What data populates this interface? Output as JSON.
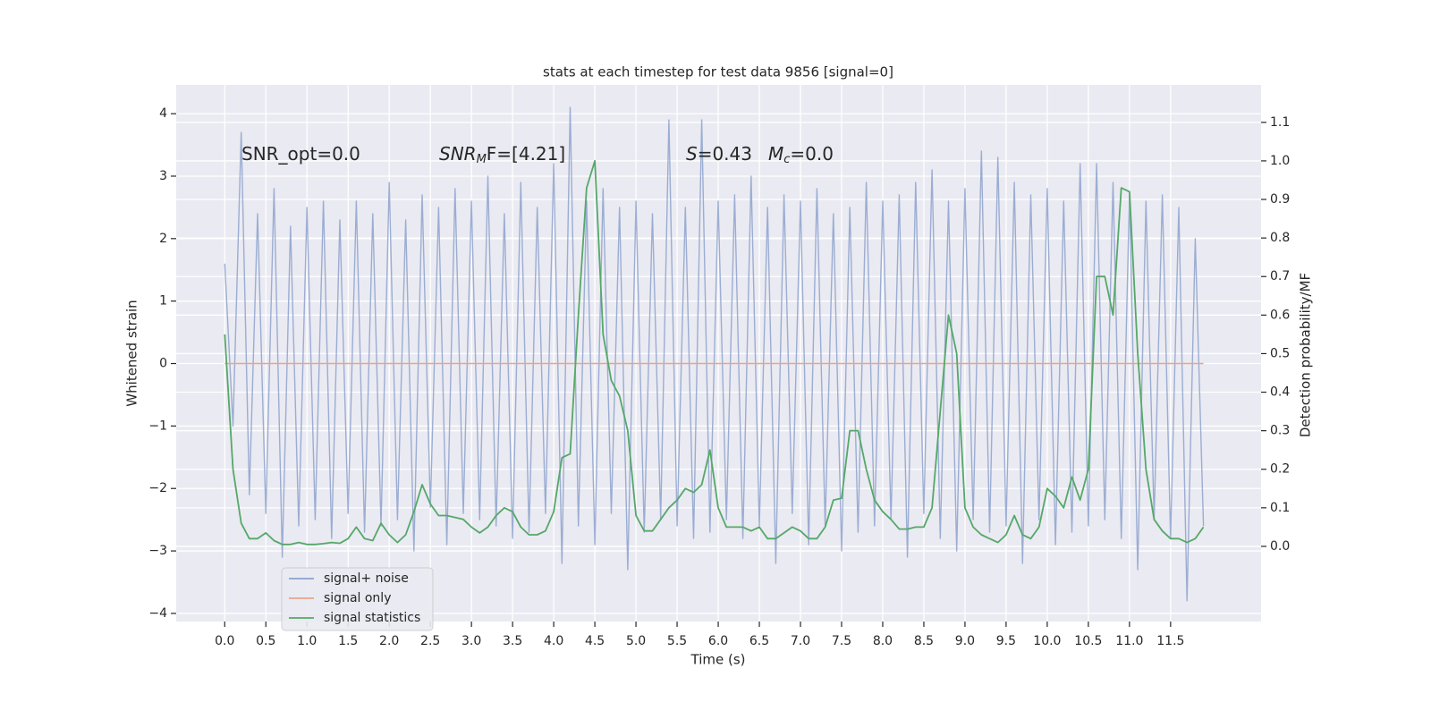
{
  "chart_data": {
    "type": "line",
    "title": "stats at each timestep for test data 9856 [signal=0]",
    "xlabel": "Time (s)",
    "ylabel": "Whitened strain",
    "y2label": "Detection probability/MF",
    "annotations": [
      [
        "SNR_opt=0.0"
      ],
      [
        "SNR",
        "M",
        "F=[4.21]"
      ],
      [
        "S",
        "=0.43"
      ],
      [
        "M",
        "c",
        "=0.0"
      ]
    ],
    "x": [
      0,
      0.1,
      0.2,
      0.3,
      0.4,
      0.5,
      0.6,
      0.7,
      0.8,
      0.9,
      1,
      1.1,
      1.2,
      1.3,
      1.4,
      1.5,
      1.6,
      1.7,
      1.8,
      1.9,
      2,
      2.1,
      2.2,
      2.3,
      2.4,
      2.5,
      2.6,
      2.7,
      2.8,
      2.9,
      3,
      3.1,
      3.2,
      3.3,
      3.4,
      3.5,
      3.6,
      3.7,
      3.8,
      3.9,
      4,
      4.1,
      4.2,
      4.3,
      4.4,
      4.5,
      4.6,
      4.7,
      4.8,
      4.9,
      5,
      5.1,
      5.2,
      5.3,
      5.4,
      5.5,
      5.6,
      5.7,
      5.8,
      5.9,
      6,
      6.1,
      6.2,
      6.3,
      6.4,
      6.5,
      6.6,
      6.7,
      6.8,
      6.9,
      7,
      7.1,
      7.2,
      7.3,
      7.4,
      7.5,
      7.6,
      7.7,
      7.8,
      7.9,
      8,
      8.1,
      8.2,
      8.3,
      8.4,
      8.5,
      8.6,
      8.7,
      8.8,
      8.9,
      9,
      9.1,
      9.2,
      9.3,
      9.4,
      9.5,
      9.6,
      9.7,
      9.8,
      9.9,
      10,
      10.1,
      10.2,
      10.3,
      10.4,
      10.5,
      10.6,
      10.7,
      10.8,
      10.9,
      11,
      11.1,
      11.2,
      11.3,
      11.4,
      11.5,
      11.6,
      11.7,
      11.8,
      11.9
    ],
    "series": [
      {
        "name": "signal+ noise",
        "color": "#8da2cc",
        "values": [
          1.6,
          -1.0,
          3.7,
          -2.1,
          2.4,
          -2.4,
          2.8,
          -3.1,
          2.2,
          -2.6,
          2.5,
          -2.5,
          2.6,
          -2.8,
          2.3,
          -2.4,
          2.6,
          -2.7,
          2.4,
          -2.6,
          2.9,
          -2.5,
          2.3,
          -3.0,
          2.7,
          -2.3,
          2.5,
          -2.9,
          2.8,
          -2.4,
          2.6,
          -2.5,
          3.0,
          -2.6,
          2.4,
          -2.8,
          2.9,
          -2.7,
          2.5,
          -2.4,
          3.2,
          -3.2,
          4.1,
          -2.6,
          2.6,
          -2.9,
          2.8,
          -2.4,
          2.5,
          -3.3,
          2.6,
          -2.7,
          2.4,
          -2.5,
          3.9,
          -2.6,
          2.5,
          -2.8,
          3.9,
          -2.7,
          2.6,
          -2.5,
          2.7,
          -2.8,
          3.0,
          -2.6,
          2.5,
          -3.2,
          2.7,
          -2.4,
          2.6,
          -2.9,
          2.8,
          -2.6,
          2.4,
          -3.0,
          2.5,
          -2.7,
          2.9,
          -2.6,
          2.6,
          -2.5,
          2.7,
          -3.1,
          2.9,
          -2.4,
          3.1,
          -2.8,
          2.6,
          -3.0,
          2.8,
          -2.5,
          3.4,
          -2.7,
          3.3,
          -2.6,
          2.9,
          -3.2,
          2.7,
          -2.5,
          2.8,
          -2.9,
          2.6,
          -2.7,
          3.2,
          -2.6,
          3.2,
          -2.5,
          2.9,
          -2.8,
          2.7,
          -3.3,
          2.6,
          -2.5,
          2.7,
          -2.8,
          2.5,
          -3.8,
          2.0,
          -2.6
        ]
      },
      {
        "name": "signal only",
        "color": "#e8a48a",
        "values": [
          0,
          0,
          0,
          0,
          0,
          0,
          0,
          0,
          0,
          0,
          0,
          0,
          0,
          0,
          0,
          0,
          0,
          0,
          0,
          0,
          0,
          0,
          0,
          0,
          0,
          0,
          0,
          0,
          0,
          0,
          0,
          0,
          0,
          0,
          0,
          0,
          0,
          0,
          0,
          0,
          0,
          0,
          0,
          0,
          0,
          0,
          0,
          0,
          0,
          0,
          0,
          0,
          0,
          0,
          0,
          0,
          0,
          0,
          0,
          0,
          0,
          0,
          0,
          0,
          0,
          0,
          0,
          0,
          0,
          0,
          0,
          0,
          0,
          0,
          0,
          0,
          0,
          0,
          0,
          0,
          0,
          0,
          0,
          0,
          0,
          0,
          0,
          0,
          0,
          0,
          0,
          0,
          0,
          0,
          0,
          0,
          0,
          0,
          0,
          0,
          0,
          0,
          0,
          0,
          0,
          0,
          0,
          0,
          0,
          0,
          0,
          0,
          0,
          0,
          0,
          0,
          0,
          0,
          0,
          0
        ]
      },
      {
        "name": "signal statistics",
        "color": "#55a868",
        "axis": "y2",
        "values": [
          0.55,
          0.2,
          0.06,
          0.02,
          0.02,
          0.035,
          0.015,
          0.005,
          0.005,
          0.01,
          0.005,
          0.005,
          0.007,
          0.01,
          0.008,
          0.02,
          0.05,
          0.02,
          0.015,
          0.06,
          0.03,
          0.01,
          0.03,
          0.09,
          0.16,
          0.11,
          0.08,
          0.08,
          0.075,
          0.07,
          0.05,
          0.035,
          0.05,
          0.08,
          0.1,
          0.09,
          0.05,
          0.03,
          0.03,
          0.04,
          0.09,
          0.23,
          0.24,
          0.6,
          0.93,
          1.0,
          0.55,
          0.43,
          0.39,
          0.3,
          0.08,
          0.04,
          0.04,
          0.07,
          0.1,
          0.12,
          0.15,
          0.14,
          0.16,
          0.25,
          0.1,
          0.05,
          0.05,
          0.05,
          0.04,
          0.05,
          0.02,
          0.02,
          0.035,
          0.05,
          0.04,
          0.02,
          0.02,
          0.05,
          0.12,
          0.125,
          0.3,
          0.3,
          0.2,
          0.12,
          0.09,
          0.07,
          0.045,
          0.045,
          0.05,
          0.05,
          0.1,
          0.35,
          0.6,
          0.5,
          0.1,
          0.05,
          0.03,
          0.02,
          0.01,
          0.03,
          0.08,
          0.03,
          0.02,
          0.05,
          0.15,
          0.13,
          0.1,
          0.18,
          0.12,
          0.2,
          0.7,
          0.7,
          0.6,
          0.93,
          0.92,
          0.5,
          0.2,
          0.07,
          0.04,
          0.02,
          0.02,
          0.01,
          0.02,
          0.05
        ]
      }
    ],
    "xlim": [
      -0.59,
      12.6
    ],
    "xticks": [
      {
        "value": 0,
        "label": "0.0"
      },
      0.5,
      {
        "value": 1,
        "label": "1.0"
      },
      1.5,
      {
        "value": 2,
        "label": "2.0"
      },
      2.5,
      {
        "value": 3,
        "label": "3.0"
      },
      3.5,
      {
        "value": 4,
        "label": "4.0"
      },
      4.5,
      {
        "value": 5,
        "label": "5.0"
      },
      5.5,
      {
        "value": 6,
        "label": "6.0"
      },
      6.5,
      {
        "value": 7,
        "label": "7.0"
      },
      7.5,
      {
        "value": 8,
        "label": "8.0"
      },
      8.5,
      {
        "value": 9,
        "label": "9.0"
      },
      9.5,
      {
        "value": 10,
        "label": "10.0"
      },
      10.5,
      {
        "value": 11,
        "label": "11.0"
      },
      11.5
    ],
    "ylim": [
      -4.13,
      4.46
    ],
    "yticks": [
      {
        "value": -4,
        "label": "−4"
      },
      {
        "value": -3,
        "label": "−3"
      },
      {
        "value": -2,
        "label": "−2"
      },
      {
        "value": -1,
        "label": "−1"
      },
      0,
      1,
      2,
      3,
      4
    ],
    "y2lim": [
      -0.195,
      1.197
    ],
    "y2ticks": [
      {
        "value": 0,
        "label": "0.0"
      },
      0.1,
      0.2,
      0.3,
      0.4,
      0.5,
      0.6,
      0.7,
      0.8,
      0.9,
      {
        "value": 1,
        "label": "1.0"
      },
      1.1
    ],
    "grid": true,
    "legend": "lower left"
  }
}
